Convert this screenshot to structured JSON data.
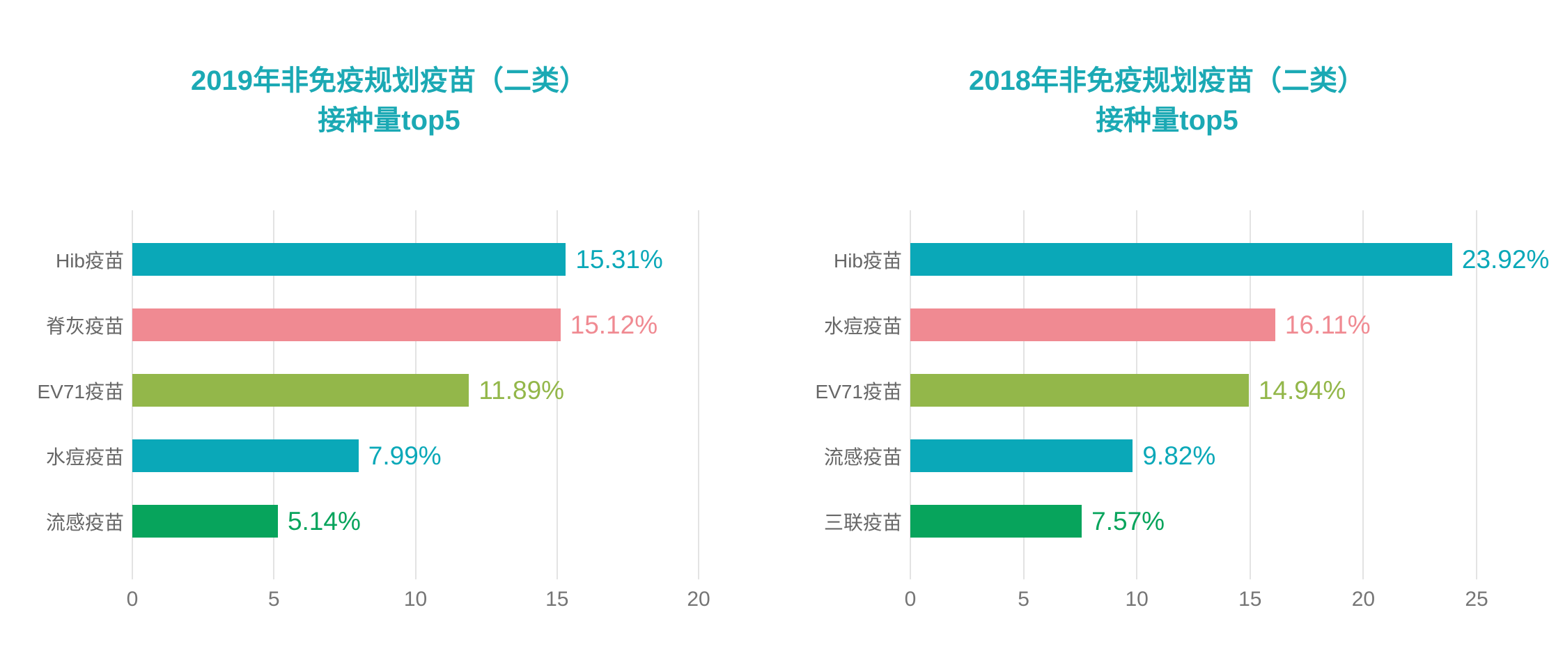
{
  "style": {
    "background": "#FFFFFF",
    "title_color": "#1BA9B4",
    "category_color": "#666666",
    "tick_color": "#757575",
    "grid_color": "#E3E3E3"
  },
  "chart_data": [
    {
      "type": "bar",
      "orientation": "horizontal",
      "title": "2019年非免疫规划疫苗（二类）接种量top5",
      "title_line1": "2019年非免疫规划疫苗（二类）",
      "title_line2": "接种量top5",
      "categories": [
        "Hib疫苗",
        "脊灰疫苗",
        "EV71疫苗",
        "水痘疫苗",
        "流感疫苗"
      ],
      "values": [
        15.31,
        15.12,
        11.89,
        7.99,
        5.14
      ],
      "value_labels": [
        "15.31%",
        "15.12%",
        "11.89%",
        "7.99%",
        "5.14%"
      ],
      "bar_colors": [
        "#0AA8B8",
        "#F08A92",
        "#93B74A",
        "#0AA8B8",
        "#07A45C"
      ],
      "xlim": [
        0,
        20
      ],
      "xticks": [
        0,
        5,
        10,
        15,
        20
      ],
      "xlabel": "",
      "ylabel": "",
      "grid": "vertical-gridlines",
      "legend": "none"
    },
    {
      "type": "bar",
      "orientation": "horizontal",
      "title": "2018年非免疫规划疫苗（二类）接种量top5",
      "title_line1": "2018年非免疫规划疫苗（二类）",
      "title_line2": "接种量top5",
      "categories": [
        "Hib疫苗",
        "水痘疫苗",
        "EV71疫苗",
        "流感疫苗",
        "三联疫苗"
      ],
      "values": [
        23.92,
        16.11,
        14.94,
        9.82,
        7.57
      ],
      "value_labels": [
        "23.92%",
        "16.11%",
        "14.94%",
        "9.82%",
        "7.57%"
      ],
      "bar_colors": [
        "#0AA8B8",
        "#F08A92",
        "#93B74A",
        "#0AA8B8",
        "#07A45C"
      ],
      "xlim": [
        0,
        25
      ],
      "xticks": [
        0,
        5,
        10,
        15,
        20,
        25
      ],
      "xlabel": "",
      "ylabel": "",
      "grid": "vertical-gridlines",
      "legend": "none"
    }
  ]
}
